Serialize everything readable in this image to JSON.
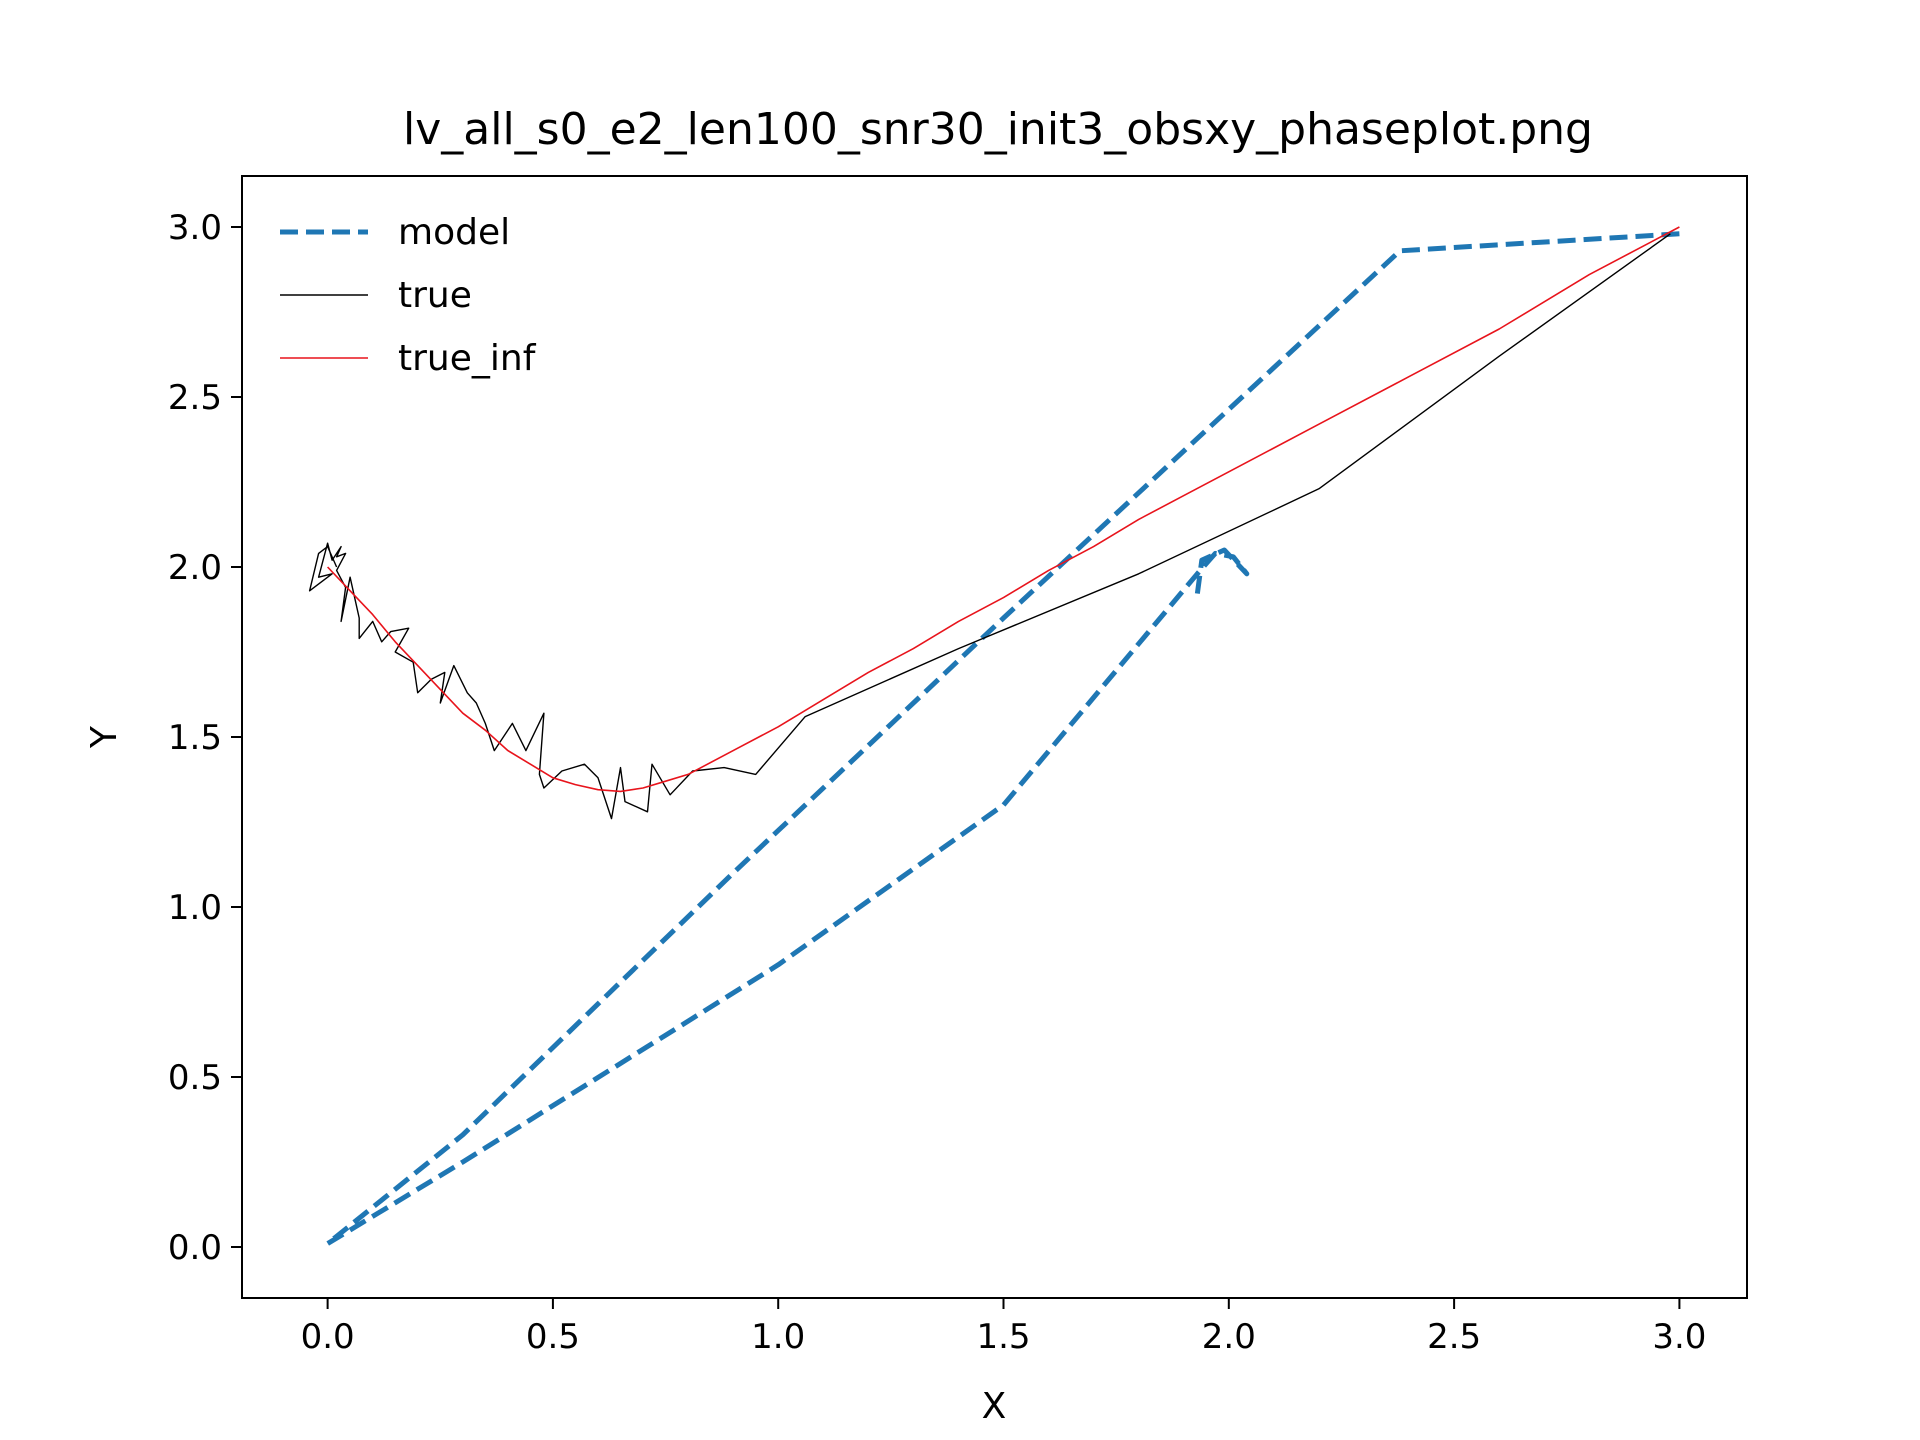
{
  "chart_data": {
    "type": "line",
    "title": "lv_all_s0_e2_len100_snr30_init3_obsxy_phaseplot.png",
    "xlabel": "X",
    "ylabel": "Y",
    "xlim": [
      -0.19,
      3.15
    ],
    "ylim": [
      -0.15,
      3.15
    ],
    "x_ticks": [
      0.0,
      0.5,
      1.0,
      1.5,
      2.0,
      2.5,
      3.0
    ],
    "x_tick_labels": [
      "0.0",
      "0.5",
      "1.0",
      "1.5",
      "2.0",
      "2.5",
      "3.0"
    ],
    "y_ticks": [
      0.0,
      0.5,
      1.0,
      1.5,
      2.0,
      2.5,
      3.0
    ],
    "y_tick_labels": [
      "0.0",
      "0.5",
      "1.0",
      "1.5",
      "2.0",
      "2.5",
      "3.0"
    ],
    "grid": false,
    "legend_position": "top-left",
    "series": [
      {
        "name": "model",
        "color": "#1f77b4",
        "style": "dashed",
        "points": [
          [
            3.0,
            2.98
          ],
          [
            2.38,
            2.93
          ],
          [
            1.5,
            1.85
          ],
          [
            0.9,
            1.1
          ],
          [
            0.3,
            0.33
          ],
          [
            0.0,
            0.01
          ],
          [
            0.3,
            0.25
          ],
          [
            1.0,
            0.83
          ],
          [
            1.5,
            1.3
          ],
          [
            1.93,
            1.98
          ],
          [
            1.97,
            2.04
          ],
          [
            2.01,
            2.03
          ],
          [
            2.04,
            1.98
          ],
          [
            1.99,
            2.05
          ],
          [
            1.94,
            2.02
          ],
          [
            1.93,
            1.92
          ]
        ]
      },
      {
        "name": "true",
        "color": "#000000",
        "style": "solid",
        "points": [
          [
            2.98,
            2.98
          ],
          [
            2.6,
            2.62
          ],
          [
            2.2,
            2.23
          ],
          [
            1.8,
            1.98
          ],
          [
            1.4,
            1.76
          ],
          [
            1.06,
            1.56
          ],
          [
            0.95,
            1.39
          ],
          [
            0.88,
            1.41
          ],
          [
            0.81,
            1.4
          ],
          [
            0.76,
            1.33
          ],
          [
            0.72,
            1.42
          ],
          [
            0.71,
            1.28
          ],
          [
            0.66,
            1.31
          ],
          [
            0.65,
            1.41
          ],
          [
            0.63,
            1.26
          ],
          [
            0.6,
            1.38
          ],
          [
            0.57,
            1.42
          ],
          [
            0.52,
            1.4
          ],
          [
            0.48,
            1.35
          ],
          [
            0.47,
            1.39
          ],
          [
            0.48,
            1.57
          ],
          [
            0.44,
            1.46
          ],
          [
            0.41,
            1.54
          ],
          [
            0.37,
            1.46
          ],
          [
            0.35,
            1.54
          ],
          [
            0.33,
            1.6
          ],
          [
            0.31,
            1.63
          ],
          [
            0.28,
            1.71
          ],
          [
            0.25,
            1.6
          ],
          [
            0.26,
            1.69
          ],
          [
            0.23,
            1.67
          ],
          [
            0.2,
            1.63
          ],
          [
            0.19,
            1.72
          ],
          [
            0.15,
            1.75
          ],
          [
            0.18,
            1.82
          ],
          [
            0.14,
            1.81
          ],
          [
            0.12,
            1.78
          ],
          [
            0.1,
            1.84
          ],
          [
            0.07,
            1.79
          ],
          [
            0.07,
            1.85
          ],
          [
            0.05,
            1.97
          ],
          [
            0.03,
            1.84
          ],
          [
            0.04,
            1.94
          ],
          [
            0.02,
            1.99
          ],
          [
            0.04,
            2.04
          ],
          [
            0.02,
            2.03
          ],
          [
            0.03,
            2.06
          ],
          [
            0.01,
            2.02
          ],
          [
            0.0,
            2.07
          ],
          [
            -0.02,
            1.97
          ],
          [
            0.01,
            1.98
          ],
          [
            -0.04,
            1.93
          ],
          [
            -0.02,
            2.04
          ],
          [
            0.0,
            2.06
          ],
          [
            0.02,
            2.0
          ]
        ]
      },
      {
        "name": "true_inf",
        "color": "#e8141c",
        "style": "solid",
        "points": [
          [
            0.0,
            2.0
          ],
          [
            0.05,
            1.93
          ],
          [
            0.1,
            1.86
          ],
          [
            0.15,
            1.78
          ],
          [
            0.2,
            1.71
          ],
          [
            0.25,
            1.64
          ],
          [
            0.3,
            1.57
          ],
          [
            0.35,
            1.52
          ],
          [
            0.4,
            1.46
          ],
          [
            0.45,
            1.42
          ],
          [
            0.5,
            1.38
          ],
          [
            0.55,
            1.36
          ],
          [
            0.6,
            1.345
          ],
          [
            0.65,
            1.34
          ],
          [
            0.7,
            1.35
          ],
          [
            0.75,
            1.37
          ],
          [
            0.8,
            1.39
          ],
          [
            0.9,
            1.46
          ],
          [
            1.0,
            1.53
          ],
          [
            1.1,
            1.61
          ],
          [
            1.2,
            1.69
          ],
          [
            1.3,
            1.76
          ],
          [
            1.4,
            1.84
          ],
          [
            1.5,
            1.91
          ],
          [
            1.6,
            1.99
          ],
          [
            1.7,
            2.06
          ],
          [
            1.8,
            2.14
          ],
          [
            1.9,
            2.21
          ],
          [
            2.0,
            2.28
          ],
          [
            2.2,
            2.42
          ],
          [
            2.4,
            2.56
          ],
          [
            2.6,
            2.7
          ],
          [
            2.8,
            2.86
          ],
          [
            3.0,
            3.0
          ]
        ]
      }
    ]
  }
}
